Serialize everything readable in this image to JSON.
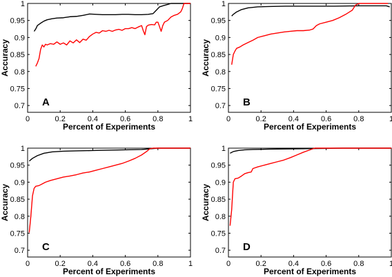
{
  "chart_data": [
    {
      "type": "line",
      "panel_label": "A",
      "xlabel": "Percent of Experiments",
      "ylabel": "Accuracy",
      "xlim": [
        0,
        1
      ],
      "ylim": [
        0.68,
        1.0
      ],
      "xticks": [
        "0",
        "0.2",
        "0.4",
        "0.6",
        "0.8",
        "1"
      ],
      "yticks": [
        "1",
        "0.95",
        "0.9",
        "0.85",
        "0.8",
        "0.75",
        "0.7"
      ],
      "grid": false,
      "series": [
        {
          "color": "#000000",
          "points": [
            [
              0.04,
              0.918
            ],
            [
              0.05,
              0.925
            ],
            [
              0.06,
              0.935
            ],
            [
              0.08,
              0.942
            ],
            [
              0.1,
              0.948
            ],
            [
              0.12,
              0.952
            ],
            [
              0.15,
              0.955
            ],
            [
              0.18,
              0.957
            ],
            [
              0.22,
              0.958
            ],
            [
              0.26,
              0.961
            ],
            [
              0.3,
              0.962
            ],
            [
              0.34,
              0.965
            ],
            [
              0.38,
              0.969
            ],
            [
              0.42,
              0.968
            ],
            [
              0.46,
              0.967
            ],
            [
              0.5,
              0.967
            ],
            [
              0.54,
              0.967
            ],
            [
              0.58,
              0.968
            ],
            [
              0.62,
              0.968
            ],
            [
              0.66,
              0.967
            ],
            [
              0.7,
              0.967
            ],
            [
              0.74,
              0.968
            ],
            [
              0.77,
              0.97
            ],
            [
              0.79,
              0.98
            ],
            [
              0.81,
              0.99
            ],
            [
              0.83,
              0.993
            ],
            [
              0.86,
              0.997
            ],
            [
              0.88,
              1.0
            ],
            [
              1.0,
              1.0
            ]
          ]
        },
        {
          "color": "#ff0000",
          "points": [
            [
              0.05,
              0.815
            ],
            [
              0.06,
              0.825
            ],
            [
              0.07,
              0.838
            ],
            [
              0.08,
              0.865
            ],
            [
              0.09,
              0.878
            ],
            [
              0.1,
              0.872
            ],
            [
              0.11,
              0.88
            ],
            [
              0.12,
              0.878
            ],
            [
              0.14,
              0.882
            ],
            [
              0.16,
              0.88
            ],
            [
              0.18,
              0.887
            ],
            [
              0.2,
              0.88
            ],
            [
              0.22,
              0.884
            ],
            [
              0.24,
              0.878
            ],
            [
              0.26,
              0.89
            ],
            [
              0.28,
              0.884
            ],
            [
              0.3,
              0.893
            ],
            [
              0.32,
              0.885
            ],
            [
              0.34,
              0.895
            ],
            [
              0.36,
              0.892
            ],
            [
              0.38,
              0.903
            ],
            [
              0.4,
              0.91
            ],
            [
              0.42,
              0.915
            ],
            [
              0.44,
              0.913
            ],
            [
              0.46,
              0.92
            ],
            [
              0.48,
              0.918
            ],
            [
              0.5,
              0.921
            ],
            [
              0.52,
              0.918
            ],
            [
              0.54,
              0.922
            ],
            [
              0.56,
              0.924
            ],
            [
              0.58,
              0.921
            ],
            [
              0.6,
              0.926
            ],
            [
              0.62,
              0.926
            ],
            [
              0.64,
              0.929
            ],
            [
              0.66,
              0.926
            ],
            [
              0.68,
              0.931
            ],
            [
              0.7,
              0.935
            ],
            [
              0.71,
              0.92
            ],
            [
              0.72,
              0.908
            ],
            [
              0.73,
              0.932
            ],
            [
              0.74,
              0.936
            ],
            [
              0.76,
              0.938
            ],
            [
              0.78,
              0.937
            ],
            [
              0.79,
              0.945
            ],
            [
              0.8,
              0.945
            ],
            [
              0.81,
              0.932
            ],
            [
              0.82,
              0.918
            ],
            [
              0.83,
              0.935
            ],
            [
              0.84,
              0.945
            ],
            [
              0.86,
              0.95
            ],
            [
              0.88,
              0.96
            ],
            [
              0.9,
              0.965
            ],
            [
              0.92,
              0.968
            ],
            [
              0.94,
              0.975
            ],
            [
              0.95,
              0.985
            ],
            [
              0.96,
              1.0
            ],
            [
              1.0,
              1.0
            ]
          ]
        }
      ]
    },
    {
      "type": "line",
      "panel_label": "B",
      "xlabel": "Percent of Experiments",
      "ylabel": "Accuracy",
      "xlim": [
        0,
        1
      ],
      "ylim": [
        0.68,
        1.0
      ],
      "xticks": [
        "0",
        "0.2",
        "0.4",
        "0.6",
        "0.8",
        "1"
      ],
      "yticks": [
        "1",
        "0.95",
        "0.9",
        "0.85",
        "0.8",
        "0.75",
        "0.7"
      ],
      "grid": false,
      "series": [
        {
          "color": "#000000",
          "points": [
            [
              0.02,
              0.963
            ],
            [
              0.03,
              0.968
            ],
            [
              0.05,
              0.975
            ],
            [
              0.08,
              0.982
            ],
            [
              0.12,
              0.987
            ],
            [
              0.18,
              0.99
            ],
            [
              0.25,
              0.991
            ],
            [
              0.35,
              0.992
            ],
            [
              0.5,
              0.992
            ],
            [
              0.65,
              0.992
            ],
            [
              0.8,
              0.993
            ],
            [
              0.9,
              0.993
            ],
            [
              0.97,
              0.993
            ],
            [
              0.99,
              0.99
            ]
          ]
        },
        {
          "color": "#ff0000",
          "points": [
            [
              0.02,
              0.82
            ],
            [
              0.03,
              0.85
            ],
            [
              0.04,
              0.86
            ],
            [
              0.05,
              0.868
            ],
            [
              0.07,
              0.872
            ],
            [
              0.09,
              0.878
            ],
            [
              0.12,
              0.885
            ],
            [
              0.15,
              0.892
            ],
            [
              0.18,
              0.9
            ],
            [
              0.22,
              0.905
            ],
            [
              0.26,
              0.91
            ],
            [
              0.3,
              0.913
            ],
            [
              0.34,
              0.916
            ],
            [
              0.38,
              0.918
            ],
            [
              0.42,
              0.92
            ],
            [
              0.46,
              0.92
            ],
            [
              0.5,
              0.922
            ],
            [
              0.52,
              0.925
            ],
            [
              0.54,
              0.935
            ],
            [
              0.56,
              0.94
            ],
            [
              0.6,
              0.945
            ],
            [
              0.64,
              0.95
            ],
            [
              0.68,
              0.958
            ],
            [
              0.72,
              0.968
            ],
            [
              0.76,
              0.98
            ],
            [
              0.78,
              0.995
            ],
            [
              0.8,
              1.0
            ],
            [
              0.9,
              1.0
            ],
            [
              0.98,
              1.0
            ]
          ]
        }
      ]
    },
    {
      "type": "line",
      "panel_label": "C",
      "xlabel": "Percent of Experiments",
      "ylabel": "Accuracy",
      "xlim": [
        0,
        1
      ],
      "ylim": [
        0.68,
        1.0
      ],
      "xticks": [
        "0",
        "0.2",
        "0.4",
        "0.6",
        "0.8",
        "1"
      ],
      "yticks": [
        "1",
        "0.95",
        "0.9",
        "0.85",
        "0.8",
        "0.75",
        "0.7"
      ],
      "grid": false,
      "series": [
        {
          "color": "#000000",
          "points": [
            [
              0.01,
              0.962
            ],
            [
              0.03,
              0.97
            ],
            [
              0.06,
              0.978
            ],
            [
              0.1,
              0.985
            ],
            [
              0.15,
              0.989
            ],
            [
              0.22,
              0.991
            ],
            [
              0.3,
              0.992
            ],
            [
              0.4,
              0.993
            ],
            [
              0.5,
              0.994
            ],
            [
              0.6,
              0.995
            ],
            [
              0.7,
              0.996
            ],
            [
              0.75,
              0.998
            ],
            [
              0.8,
              1.0
            ],
            [
              1.0,
              1.0
            ]
          ]
        },
        {
          "color": "#ff0000",
          "points": [
            [
              0.01,
              0.752
            ],
            [
              0.02,
              0.8
            ],
            [
              0.03,
              0.86
            ],
            [
              0.04,
              0.882
            ],
            [
              0.05,
              0.888
            ],
            [
              0.07,
              0.89
            ],
            [
              0.09,
              0.895
            ],
            [
              0.11,
              0.9
            ],
            [
              0.14,
              0.905
            ],
            [
              0.18,
              0.91
            ],
            [
              0.22,
              0.915
            ],
            [
              0.26,
              0.918
            ],
            [
              0.3,
              0.922
            ],
            [
              0.34,
              0.927
            ],
            [
              0.38,
              0.93
            ],
            [
              0.42,
              0.935
            ],
            [
              0.46,
              0.94
            ],
            [
              0.5,
              0.945
            ],
            [
              0.54,
              0.95
            ],
            [
              0.58,
              0.955
            ],
            [
              0.62,
              0.962
            ],
            [
              0.66,
              0.97
            ],
            [
              0.7,
              0.98
            ],
            [
              0.73,
              0.99
            ],
            [
              0.75,
              0.998
            ],
            [
              0.77,
              1.0
            ],
            [
              1.0,
              1.0
            ]
          ]
        }
      ]
    },
    {
      "type": "line",
      "panel_label": "D",
      "xlabel": "Percent of Experiments",
      "ylabel": "Accuracy",
      "xlim": [
        0,
        1
      ],
      "ylim": [
        0.68,
        1.0
      ],
      "xticks": [
        "0",
        "0.2",
        "0.4",
        "0.6",
        "0.8",
        "1"
      ],
      "yticks": [
        "1",
        "0.95",
        "0.9",
        "0.85",
        "0.8",
        "0.75",
        "0.7"
      ],
      "grid": false,
      "series": [
        {
          "color": "#000000",
          "points": [
            [
              0.01,
              0.985
            ],
            [
              0.03,
              0.99
            ],
            [
              0.06,
              0.993
            ],
            [
              0.1,
              0.995
            ],
            [
              0.15,
              0.996
            ],
            [
              0.25,
              0.997
            ],
            [
              0.4,
              0.998
            ],
            [
              0.55,
              0.999
            ],
            [
              0.7,
              1.0
            ],
            [
              1.0,
              1.0
            ]
          ]
        },
        {
          "color": "#ff0000",
          "points": [
            [
              0.01,
              0.772
            ],
            [
              0.02,
              0.82
            ],
            [
              0.03,
              0.9
            ],
            [
              0.04,
              0.91
            ],
            [
              0.06,
              0.912
            ],
            [
              0.08,
              0.918
            ],
            [
              0.1,
              0.925
            ],
            [
              0.12,
              0.928
            ],
            [
              0.14,
              0.93
            ],
            [
              0.15,
              0.94
            ],
            [
              0.18,
              0.945
            ],
            [
              0.22,
              0.95
            ],
            [
              0.26,
              0.955
            ],
            [
              0.3,
              0.96
            ],
            [
              0.34,
              0.965
            ],
            [
              0.38,
              0.972
            ],
            [
              0.42,
              0.98
            ],
            [
              0.46,
              0.988
            ],
            [
              0.5,
              0.995
            ],
            [
              0.53,
              1.0
            ],
            [
              0.7,
              1.0
            ],
            [
              0.9,
              1.0
            ],
            [
              1.0,
              1.0
            ]
          ]
        }
      ]
    }
  ]
}
